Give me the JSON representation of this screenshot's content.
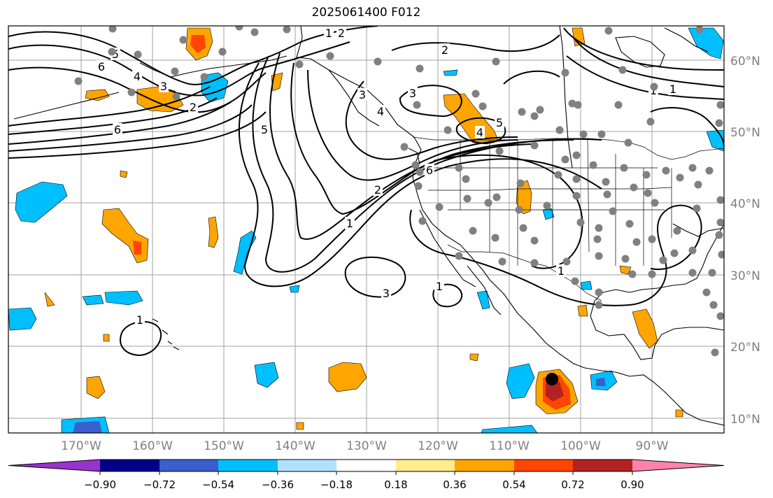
{
  "title": "2025061400 F012",
  "map": {
    "lon_labels": [
      "170°W",
      "160°W",
      "150°W",
      "140°W",
      "130°W",
      "120°W",
      "110°W",
      "100°W",
      "90°W"
    ],
    "lat_labels": [
      "60°N",
      "50°N",
      "40°N",
      "30°N",
      "20°N",
      "10°N"
    ],
    "axis_label_color": "#808080",
    "contour_labels": [
      "6",
      "5",
      "4",
      "3",
      "2",
      "1",
      "2",
      "3",
      "4",
      "5",
      "6",
      "2",
      "3",
      "4",
      "5",
      "6",
      "2",
      "1",
      "3",
      "1",
      "1",
      "1",
      "1",
      "1"
    ],
    "station_dot_color": "#808080",
    "event_marker_color": "#000000"
  },
  "colorbar": {
    "ticks": [
      "−0.90",
      "−0.72",
      "−0.54",
      "−0.36",
      "−0.18",
      "0.18",
      "0.36",
      "0.54",
      "0.72",
      "0.90"
    ],
    "colors": [
      "#9932cc",
      "#00008b",
      "#3a5fcd",
      "#00bfff",
      "#b0e2ff",
      "#ffffff",
      "#ffec8b",
      "#ffa500",
      "#ff4500",
      "#b22222",
      "#ff82ab"
    ],
    "extend": "both"
  }
}
